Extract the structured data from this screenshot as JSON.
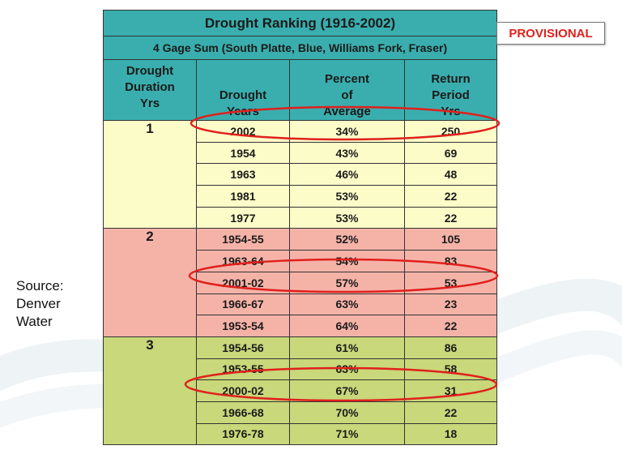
{
  "table": {
    "title": "Drought Ranking (1916-2002)",
    "subtitle": "4 Gage Sum (South Platte, Blue, Williams Fork, Fraser)",
    "columns": {
      "duration": [
        "Drought",
        "Duration",
        "Yrs"
      ],
      "years": [
        "Drought",
        "Years"
      ],
      "percent": [
        "Percent",
        "of",
        "Average"
      ],
      "return": [
        "Return",
        "Period",
        "Yrs"
      ]
    },
    "groups": [
      {
        "duration": "1",
        "rows": [
          {
            "years": "2002",
            "percent": "34%",
            "return": "250"
          },
          {
            "years": "1954",
            "percent": "43%",
            "return": "69"
          },
          {
            "years": "1963",
            "percent": "46%",
            "return": "48"
          },
          {
            "years": "1981",
            "percent": "53%",
            "return": "22"
          },
          {
            "years": "1977",
            "percent": "53%",
            "return": "22"
          }
        ]
      },
      {
        "duration": "2",
        "rows": [
          {
            "years": "1954-55",
            "percent": "52%",
            "return": "105"
          },
          {
            "years": "1963-64",
            "percent": "54%",
            "return": "83"
          },
          {
            "years": "2001-02",
            "percent": "57%",
            "return": "53"
          },
          {
            "years": "1966-67",
            "percent": "63%",
            "return": "23"
          },
          {
            "years": "1953-54",
            "percent": "64%",
            "return": "22"
          }
        ]
      },
      {
        "duration": "3",
        "rows": [
          {
            "years": "1954-56",
            "percent": "61%",
            "return": "86"
          },
          {
            "years": "1953-55",
            "percent": "63%",
            "return": "58"
          },
          {
            "years": "2000-02",
            "percent": "67%",
            "return": "31"
          },
          {
            "years": "1966-68",
            "percent": "70%",
            "return": "22"
          },
          {
            "years": "1976-78",
            "percent": "71%",
            "return": "18"
          }
        ]
      }
    ]
  },
  "badge": {
    "label": "PROVISIONAL"
  },
  "source": {
    "lines": [
      "Source:",
      "Denver",
      "Water"
    ]
  },
  "colors": {
    "header": "#3aaeae",
    "group1": "#fcfcc8",
    "group2": "#f5b3a8",
    "group3": "#c8d87a",
    "highlight_oval": "#e0201c",
    "badge_text": "#e0201c"
  }
}
